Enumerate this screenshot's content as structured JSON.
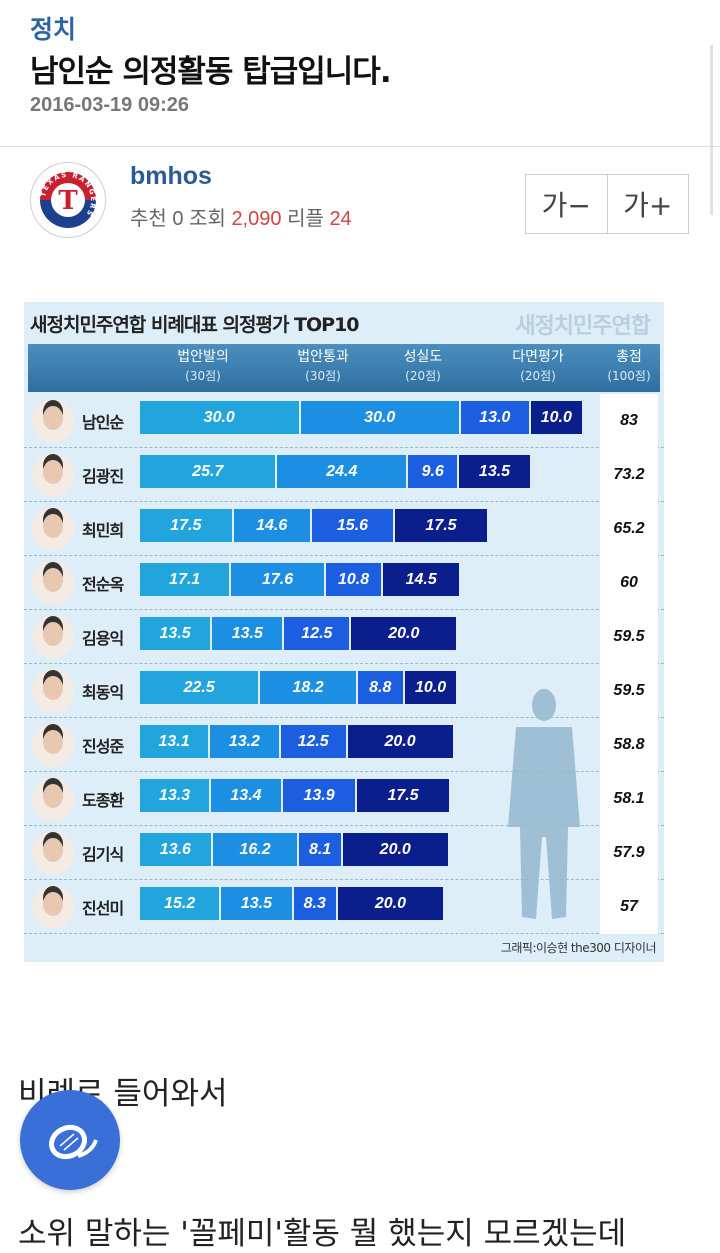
{
  "post": {
    "category": "정치",
    "title": "남인순 의정활동 탑급입니다.",
    "date": "2016-03-19 09:26"
  },
  "author": {
    "name": "bmhos",
    "avatar_logo_text": "TEXAS RANGERS",
    "recommend_label": "추천",
    "recommend": "0",
    "views_label": "조회",
    "views": "2,090",
    "replies_label": "리플",
    "replies": "24"
  },
  "font_controls": {
    "decrease": "가−",
    "increase": "가+"
  },
  "body": {
    "line1": "비례로 들어와서",
    "line2": "소위 말하는 '꼴페미'활동 뭘 했는지 모르겠는데"
  },
  "fab_icon": "baseball-logo-icon",
  "chart_data": {
    "type": "bar",
    "stacked": true,
    "orientation": "horizontal",
    "title": "새정치민주연합 비례대표 의정평가 TOP10",
    "logo_text": "새정치민주연합",
    "credit": "그래픽:이승현 the300 디자이너",
    "columns": [
      {
        "label": "법안발의",
        "max": "(30점)"
      },
      {
        "label": "법안통과",
        "max": "(30점)"
      },
      {
        "label": "성실도",
        "max": "(20점)"
      },
      {
        "label": "다면평가",
        "max": "(20점)"
      },
      {
        "label": "총점",
        "max": "(100점)"
      }
    ],
    "colors": [
      "#21a5dc",
      "#1d8fe2",
      "#1b5ee0",
      "#0b1f8c"
    ],
    "categories": [
      "남인순",
      "김광진",
      "최민희",
      "전순옥",
      "김용익",
      "최동익",
      "진성준",
      "도종환",
      "김기식",
      "진선미"
    ],
    "series": [
      {
        "name": "법안발의",
        "values": [
          30.0,
          25.7,
          17.5,
          17.1,
          13.5,
          22.5,
          13.1,
          13.3,
          13.6,
          15.2
        ]
      },
      {
        "name": "법안통과",
        "values": [
          30.0,
          24.4,
          14.6,
          17.6,
          13.5,
          18.2,
          13.2,
          13.4,
          16.2,
          13.5
        ]
      },
      {
        "name": "성실도",
        "values": [
          13.0,
          9.6,
          15.6,
          10.8,
          12.5,
          8.8,
          12.5,
          13.9,
          8.1,
          8.3
        ]
      },
      {
        "name": "다면평가",
        "values": [
          10.0,
          13.5,
          17.5,
          14.5,
          20.0,
          10.0,
          20.0,
          17.5,
          20.0,
          20.0
        ]
      }
    ],
    "totals": [
      "83",
      "73.2",
      "65.2",
      "60",
      "59.5",
      "59.5",
      "58.8",
      "58.1",
      "57.9",
      "57"
    ]
  }
}
